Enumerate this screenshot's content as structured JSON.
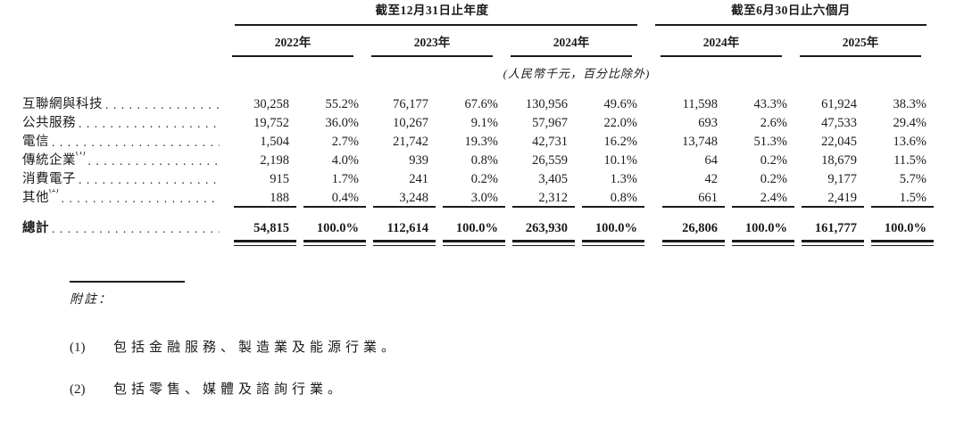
{
  "colors": {
    "background": "#ffffff",
    "text": "#1b1b1b"
  },
  "table": {
    "period_groups": [
      {
        "title": "截至12月31日止年度",
        "years": [
          "2022年",
          "2023年",
          "2024年"
        ]
      },
      {
        "title": "截至6月30日止六個月",
        "years": [
          "2024年",
          "2025年"
        ]
      }
    ],
    "unit_note": "(人民幣千元，百分比除外)",
    "rows": [
      {
        "label": "互聯網與科技",
        "sup": "",
        "cells": [
          "30,258",
          "55.2%",
          "76,177",
          "67.6%",
          "130,956",
          "49.6%",
          "11,598",
          "43.3%",
          "61,924",
          "38.3%"
        ]
      },
      {
        "label": "公共服務",
        "sup": "",
        "cells": [
          "19,752",
          "36.0%",
          "10,267",
          "9.1%",
          "57,967",
          "22.0%",
          "693",
          "2.6%",
          "47,533",
          "29.4%"
        ]
      },
      {
        "label": "電信",
        "sup": "",
        "cells": [
          "1,504",
          "2.7%",
          "21,742",
          "19.3%",
          "42,731",
          "16.2%",
          "13,748",
          "51.3%",
          "22,045",
          "13.6%"
        ]
      },
      {
        "label": "傳統企業",
        "sup": "(1)",
        "cells": [
          "2,198",
          "4.0%",
          "939",
          "0.8%",
          "26,559",
          "10.1%",
          "64",
          "0.2%",
          "18,679",
          "11.5%"
        ]
      },
      {
        "label": "消費電子",
        "sup": "",
        "cells": [
          "915",
          "1.7%",
          "241",
          "0.2%",
          "3,405",
          "1.3%",
          "42",
          "0.2%",
          "9,177",
          "5.7%"
        ]
      },
      {
        "label": "其他",
        "sup": "(2)",
        "cells": [
          "188",
          "0.4%",
          "3,248",
          "3.0%",
          "2,312",
          "0.8%",
          "661",
          "2.4%",
          "2,419",
          "1.5%"
        ]
      }
    ],
    "total": {
      "label": "總計",
      "cells": [
        "54,815",
        "100.0%",
        "112,614",
        "100.0%",
        "263,930",
        "100.0%",
        "26,806",
        "100.0%",
        "161,777",
        "100.0%"
      ]
    }
  },
  "notes": {
    "heading": "附註：",
    "items": [
      {
        "num": "(1)",
        "text": "包括金融服務、製造業及能源行業。"
      },
      {
        "num": "(2)",
        "text": "包括零售、媒體及諮詢行業。"
      }
    ]
  }
}
